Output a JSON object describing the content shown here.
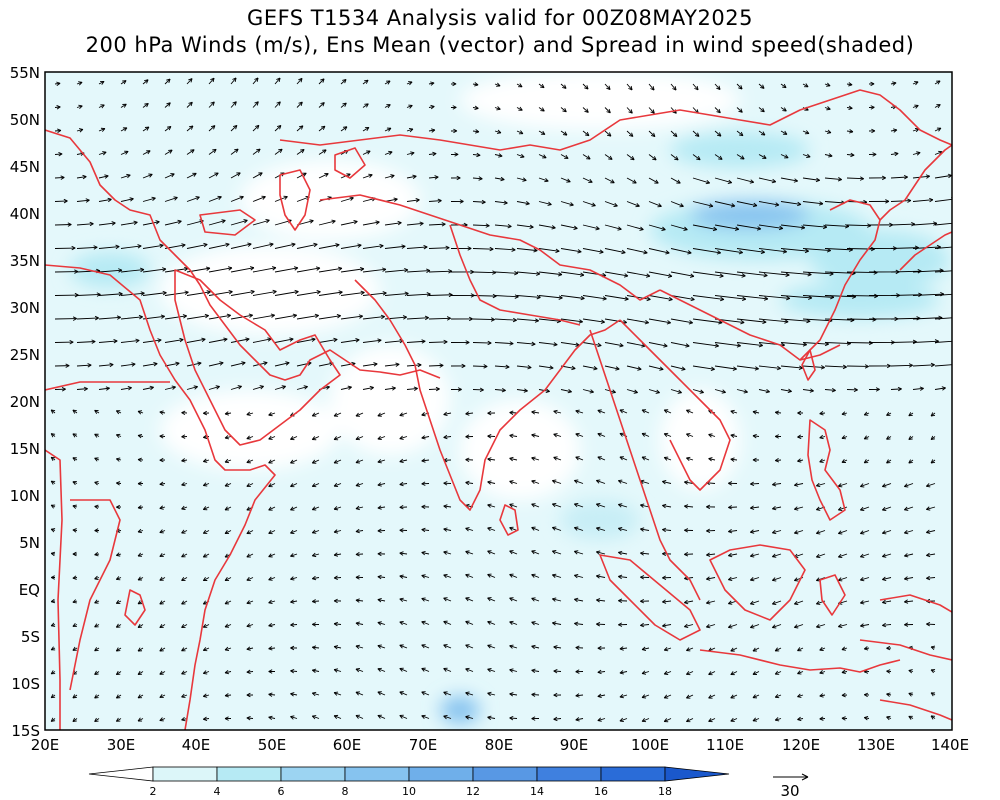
{
  "title_line1": "GEFS T1534 Analysis valid for 00Z08MAY2025",
  "title_line2": "200 hPa Winds (m/s), Ens Mean (vector) and Spread in wind speed(shaded)",
  "lat_labels": [
    "55N",
    "50N",
    "45N",
    "40N",
    "35N",
    "30N",
    "25N",
    "20N",
    "15N",
    "10N",
    "5N",
    "EQ",
    "5S",
    "10S",
    "15S"
  ],
  "lon_labels": [
    "20E",
    "30E",
    "40E",
    "50E",
    "60E",
    "70E",
    "80E",
    "90E",
    "100E",
    "110E",
    "120E",
    "130E",
    "140E"
  ],
  "colorbar_labels": [
    "2",
    "4",
    "6",
    "8",
    "10",
    "12",
    "14",
    "16",
    "18"
  ],
  "colorbar_colors": [
    "#ffffff",
    "#dcf6f9",
    "#b6eaf4",
    "#9cd4f2",
    "#86c3ef",
    "#6fafea",
    "#5898e4",
    "#3f80df",
    "#2a6cd8",
    "#1a58cc"
  ],
  "reference_vector_value": "30",
  "colors": {
    "coastline": "#e8383c",
    "frame": "#000000",
    "vector": "#000000"
  },
  "chart_data": {
    "type": "map",
    "title": "GEFS T1534 Analysis valid for 00Z08MAY2025",
    "subtitle": "200 hPa Winds (m/s), Ens Mean (vector) and Spread in wind speed(shaded)",
    "lon_range": [
      20,
      140
    ],
    "lat_range": [
      -15,
      55
    ],
    "shading_levels": [
      2,
      4,
      6,
      8,
      10,
      12,
      14,
      16,
      18
    ],
    "vector_reference_ms": 30
  }
}
